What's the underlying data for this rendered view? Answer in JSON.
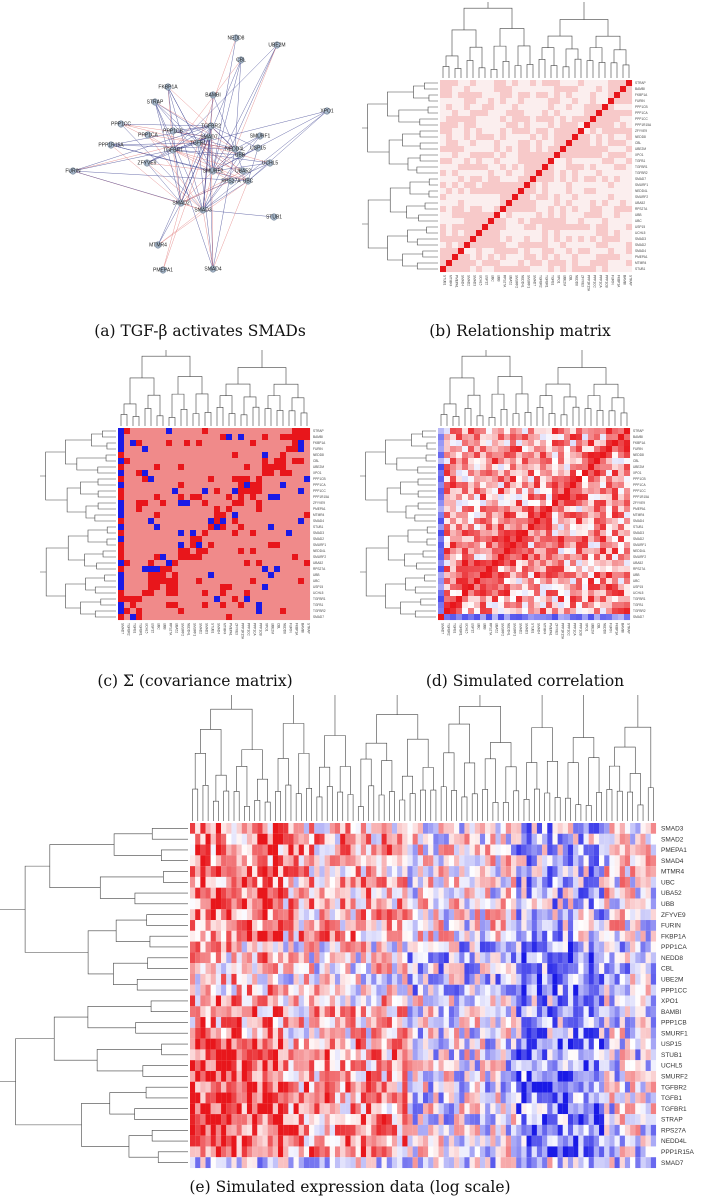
{
  "captions": {
    "a": "(a) TGF-β activates SMADs",
    "b": "(b) Relationship matrix",
    "c": "(c) Σ (covariance matrix)",
    "d": "(d) Simulated correlation",
    "e": "(e) Simulated expression data (log scale)"
  },
  "network": {
    "nodes": [
      "NEDD8",
      "UBE2M",
      "CBL",
      "FKBP1A",
      "BAMBI",
      "XPO1",
      "STRAP",
      "PPP1CC",
      "PPP1CA",
      "TGFBR2",
      "PPP1CB",
      "SMURF1",
      "PPP1R15A",
      "TGFB1",
      "TGFBR1",
      "NEDD4L",
      "SMAD7",
      "USP15",
      "ZFYVE9",
      "UCHL5",
      "UBA52",
      "SMURF2",
      "RPS27A",
      "UBC",
      "FURIN",
      "SMAD2",
      "STUB1",
      "SMAD3",
      "MTMR4",
      "PMEPA1",
      "SMAD4",
      "UBB"
    ]
  },
  "relationship_matrix": {
    "genes": [
      "STRAP",
      "BAMBI",
      "FKBP1A",
      "FURIN",
      "PPP1CB",
      "PPP1CA",
      "PPP1CC",
      "PPP1R15A",
      "ZFYVE9",
      "NEDD8",
      "CBL",
      "UBE2M",
      "XPO1",
      "TGFB1",
      "TGFBR1",
      "TGFBR2",
      "SMAD7",
      "SMURF1",
      "NEDD4L",
      "SMURF2",
      "UBA52",
      "RPS27A",
      "UBB",
      "UBC",
      "USP15",
      "UCHL5",
      "SMAD3",
      "SMAD2",
      "SMAD4",
      "PMEPA1",
      "MTMR4",
      "STUB1"
    ]
  },
  "covariance_matrix": {
    "genes": [
      "STRAP",
      "BAMBI",
      "FKBP1A",
      "FURIN",
      "NEDD8",
      "CBL",
      "UBE2M",
      "XPO1",
      "PPP1CB",
      "PPP1CA",
      "PPP1CC",
      "PPP1R15A",
      "ZFYVE9",
      "PMEPA1",
      "MTMR4",
      "SMAD4",
      "STUB1",
      "SMAD3",
      "SMAD2",
      "SMURF1",
      "NEDD4L",
      "SMURF2",
      "UBA52",
      "RPS27A",
      "UBB",
      "UBC",
      "USP15",
      "UCHL5",
      "TGFBR1",
      "TGFB1",
      "TGFBR2",
      "SMAD7"
    ]
  },
  "simulated_correlation": {
    "genes": [
      "STRAP",
      "BAMBI",
      "FKBP1A",
      "FURIN",
      "NEDD8",
      "CBL",
      "UBE2M",
      "XPO1",
      "PPP1CB",
      "PPP1CA",
      "PPP1CC",
      "PPP1R15A",
      "ZFYVE9",
      "PMEPA1",
      "MTMR4",
      "SMAD4",
      "STUB1",
      "SMAD3",
      "SMAD2",
      "SMURF1",
      "NEDD4L",
      "SMURF2",
      "UBA52",
      "RPS27A",
      "UBB",
      "UBC",
      "USP15",
      "UCHL5",
      "TGFBR1",
      "TGFB1",
      "TGFBR2",
      "SMAD7"
    ]
  },
  "expression_heatmap": {
    "genes": [
      "SMAD3",
      "SMAD2",
      "PMEPA1",
      "SMAD4",
      "MTMR4",
      "UBC",
      "UBA52",
      "UBB",
      "ZFYVE9",
      "FURIN",
      "FKBP1A",
      "PPP1CA",
      "NEDD8",
      "CBL",
      "UBE2M",
      "PPP1CC",
      "XPO1",
      "BAMBI",
      "PPP1CB",
      "SMURF1",
      "USP15",
      "STUB1",
      "UCHL5",
      "SMURF2",
      "TGFBR2",
      "TGFB1",
      "TGFBR1",
      "STRAP",
      "RPS27A",
      "NEDD4L",
      "PPP1R15A",
      "SMAD7"
    ]
  },
  "colors": {
    "high": "#e8161b",
    "mid": "#ffffff",
    "low": "#1a1ae6",
    "light_pink": "#f7c9c9",
    "edge_blue": "#3a3f8f",
    "edge_red": "#e07a7a",
    "node": "#a8b9cc"
  }
}
